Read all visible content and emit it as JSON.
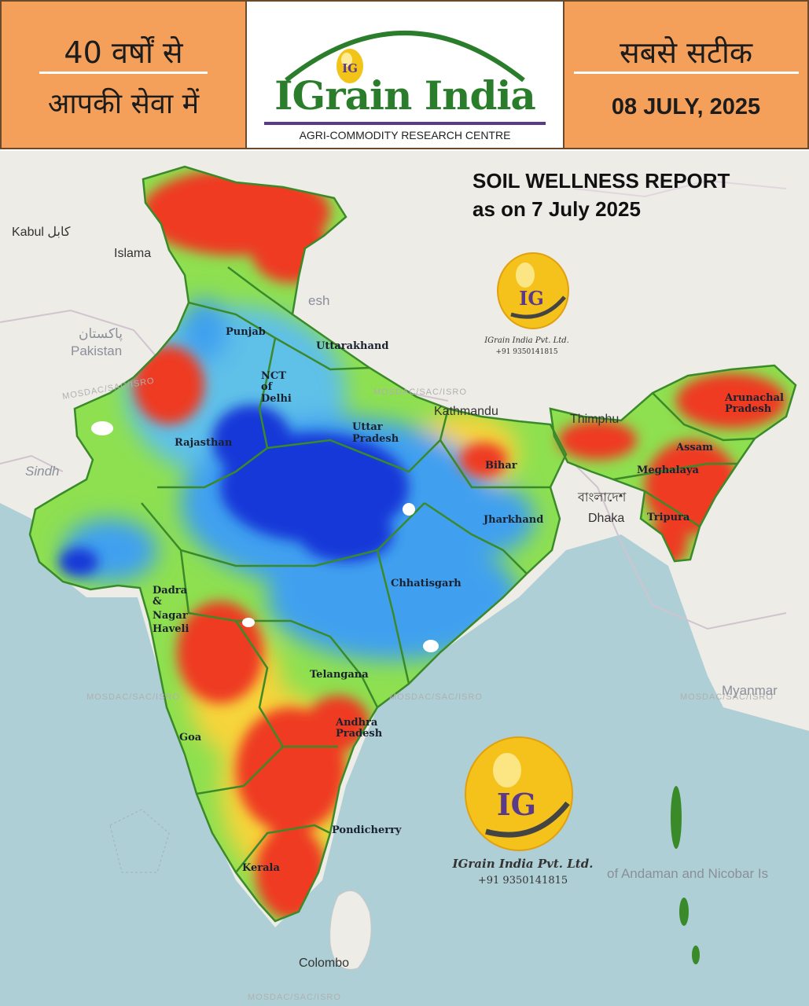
{
  "header": {
    "left_line1": "40 वर्षों से",
    "left_line2": "आपकी सेवा में",
    "brand_name": "IGrain India",
    "brand_subtitle": "AGRI-COMMODITY RESEARCH CENTRE",
    "right_line1": "सबसे सटीक",
    "date": "08 JULY, 2025"
  },
  "report": {
    "title": "SOIL WELLNESS REPORT",
    "subtitle": "as on 7 July 2025"
  },
  "logo": {
    "monogram": "IG",
    "company": "IGrain India Pvt. Ltd.",
    "phone": "+91 9350141815"
  },
  "states": {
    "punjab": "Punjab",
    "uttarakhand": "Uttarakhand",
    "nct1": "NCT",
    "nct2": "of",
    "nct3": "Delhi",
    "rajasthan": "Rajasthan",
    "up1": "Uttar",
    "up2": "Pradesh",
    "bihar": "Bihar",
    "jharkhand": "Jharkhand",
    "chhattisgarh": "Chhatisgarh",
    "dnh1": "Dadra",
    "dnh2": "&",
    "dnh3": "Nagar",
    "dnh4": "Haveli",
    "telangana": "Telangana",
    "ap1": "Andhra",
    "ap2": "Pradesh",
    "goa": "Goa",
    "pondicherry": "Pondicherry",
    "kerala": "Kerala",
    "assam": "Assam",
    "meghalaya": "Meghalaya",
    "tripura": "Tripura",
    "arunachal1": "Arunachal",
    "arunachal2": "Pradesh"
  },
  "places": {
    "kabul": "Kabul كابل",
    "islamabad": "Islama",
    "pakistan_urdu": "پاکستان",
    "pakistan": "Pakistan",
    "sindh": "Sindh",
    "kathmandu": "Kathmandu",
    "thimphu": "Thimphu",
    "dhaka_bn": "বাংলাদেশ",
    "dhaka": "Dhaka",
    "myanmar": "Myanmar",
    "andaman": "of Andaman and Nicobar Is",
    "colombo": "Colombo",
    "desh": "esh"
  },
  "watermark": "MOSDAC/SAC/ISRO",
  "colors": {
    "header_orange": "#f4a05a",
    "brand_green": "#2a7d2a",
    "brand_purple": "#5c3a8a",
    "soil_dry": "#ee3a24",
    "soil_moderate": "#f6d43a",
    "soil_normal": "#8ee050",
    "soil_wet": "#3fa0ef",
    "soil_very_wet": "#1538d8",
    "sea": "#aecfd6",
    "boundary": "#3a8a2a"
  }
}
